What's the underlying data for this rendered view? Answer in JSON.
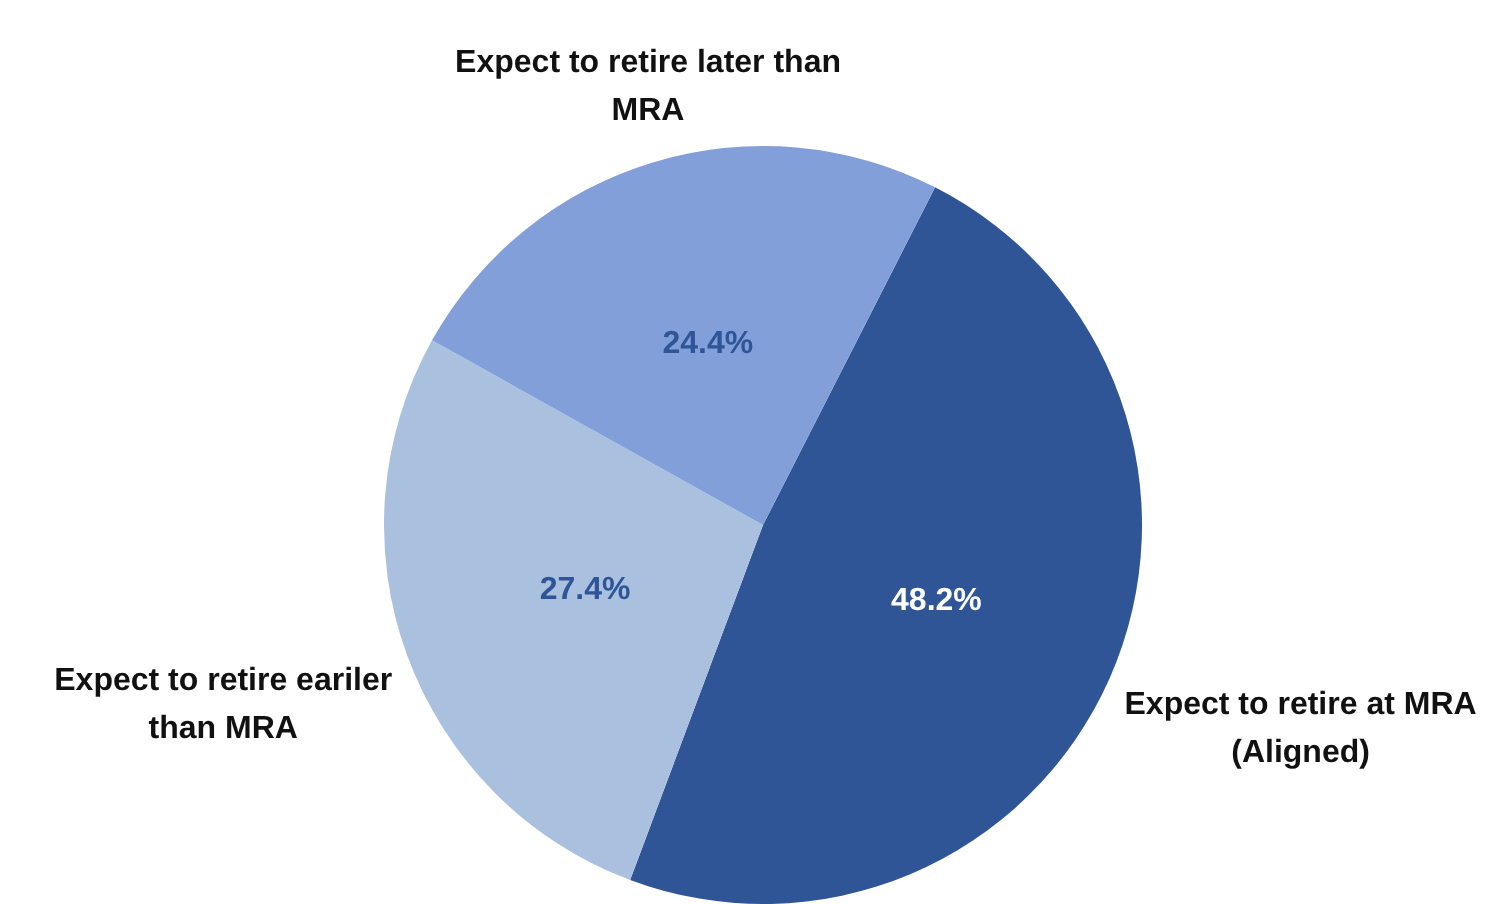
{
  "chart_data": {
    "type": "pie",
    "categories": [
      "Expect to retire at MRA (Aligned)",
      "Expect to retire eariler than MRA",
      "Expect to retire later than MRA"
    ],
    "values": [
      48.2,
      27.4,
      24.4
    ],
    "colors": [
      "#2f5597",
      "#a9c1df",
      "#829fd9"
    ],
    "value_labels": [
      "48.2%",
      "27.4%",
      "24.4%"
    ],
    "legend": false
  }
}
